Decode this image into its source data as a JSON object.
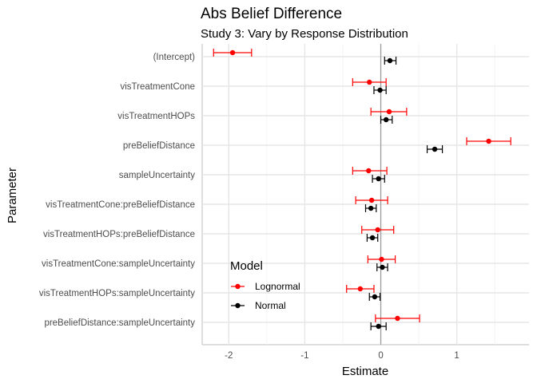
{
  "chart_data": {
    "type": "scatter",
    "title": "Abs Belief Difference",
    "subtitle": "Study 3: Vary by Response Distribution",
    "xlabel": "Estimate",
    "ylabel": "Parameter",
    "xlim": [
      -2.35,
      1.95
    ],
    "x_ticks": [
      -2,
      -1,
      0,
      1
    ],
    "x_tick_labels": [
      "-2",
      "-1",
      "0",
      "1"
    ],
    "reference_line_x": 0,
    "grid": true,
    "legend_title": "Model",
    "legend_position": "bottom-left inside",
    "categories": [
      "(Intercept)",
      "visTreatmentCone",
      "visTreatmentHOPs",
      "preBeliefDistance",
      "sampleUncertainty",
      "visTreatmentCone:preBeliefDistance",
      "visTreatmentHOPs:preBeliefDistance",
      "visTreatmentCone:sampleUncertainty",
      "visTreatmentHOPs:sampleUncertainty",
      "preBeliefDistance:sampleUncertainty"
    ],
    "series": [
      {
        "name": "Lognormal",
        "color": "#ff0000",
        "estimates": [
          -1.95,
          -0.15,
          0.11,
          1.42,
          -0.16,
          -0.12,
          -0.04,
          0.01,
          -0.27,
          0.22
        ],
        "lower": [
          -2.2,
          -0.37,
          -0.13,
          1.13,
          -0.37,
          -0.33,
          -0.25,
          -0.17,
          -0.45,
          -0.07
        ],
        "upper": [
          -1.7,
          0.07,
          0.34,
          1.71,
          0.08,
          0.09,
          0.17,
          0.19,
          -0.09,
          0.51
        ]
      },
      {
        "name": "Normal",
        "color": "#000000",
        "estimates": [
          0.12,
          -0.01,
          0.07,
          0.71,
          -0.03,
          -0.13,
          -0.11,
          0.02,
          -0.08,
          -0.03
        ],
        "lower": [
          0.05,
          -0.09,
          0.0,
          0.61,
          -0.11,
          -0.2,
          -0.18,
          -0.05,
          -0.15,
          -0.13
        ],
        "upper": [
          0.2,
          0.07,
          0.15,
          0.81,
          0.05,
          -0.06,
          -0.04,
          0.09,
          -0.01,
          0.07
        ]
      }
    ]
  }
}
